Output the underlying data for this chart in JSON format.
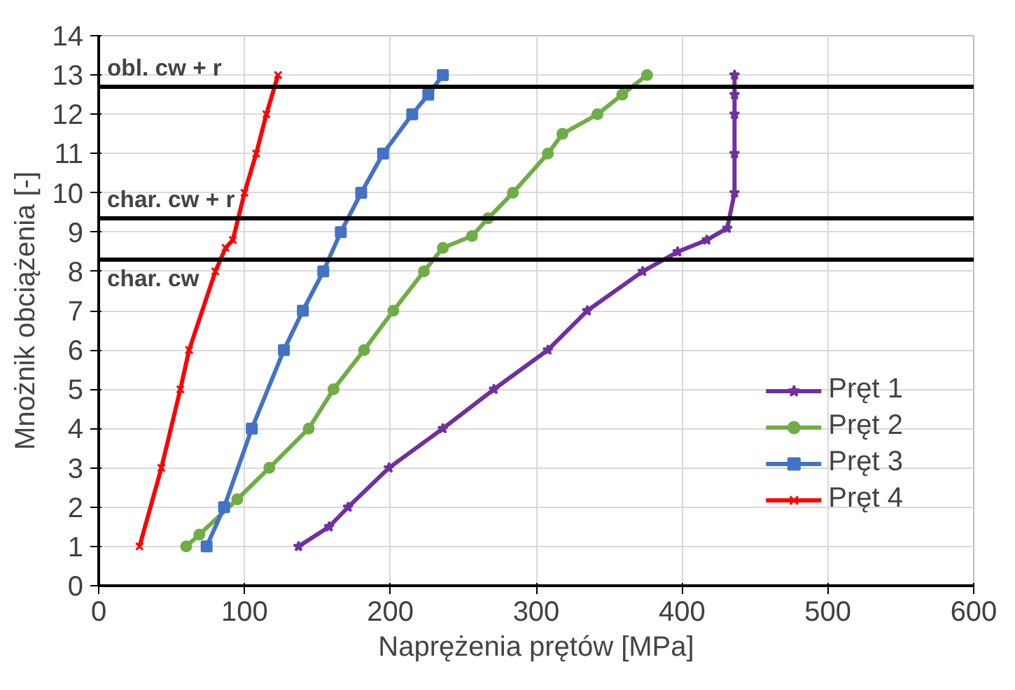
{
  "chart_data": {
    "type": "line",
    "xlabel": "Naprężenia prętów [MPa]",
    "ylabel": "Mnożnik obciążenia [-]",
    "xlim": [
      0,
      600
    ],
    "xticks": [
      0,
      100,
      200,
      300,
      400,
      500,
      600
    ],
    "ylim": [
      0,
      14
    ],
    "yticks": [
      0,
      1,
      2,
      3,
      4,
      5,
      6,
      7,
      8,
      9,
      10,
      11,
      12,
      13,
      14
    ],
    "grid": true,
    "legend": "right",
    "line_style": "solid",
    "series": [
      {
        "name": "Pręt 1",
        "color": "#7030a0",
        "marker": "star",
        "x": [
          137,
          158,
          171,
          199,
          236,
          271,
          308,
          335,
          373,
          397,
          417,
          431,
          436,
          436,
          436,
          436,
          436
        ],
        "values": [
          1,
          1.5,
          2,
          3,
          4,
          5,
          6,
          7,
          8,
          8.5,
          8.8,
          9.1,
          10,
          11,
          12,
          12.5,
          13
        ]
      },
      {
        "name": "Pręt 2",
        "color": "#70ad47",
        "marker": "circle",
        "x": [
          60,
          69,
          95,
          117,
          144,
          161,
          182,
          202,
          223,
          236,
          256,
          267,
          284,
          308,
          318,
          342,
          359,
          376
        ],
        "values": [
          1,
          1.3,
          2.2,
          3,
          4,
          5,
          6,
          7,
          8,
          8.6,
          8.9,
          9.35,
          10,
          11,
          11.5,
          12,
          12.5,
          13
        ]
      },
      {
        "name": "Pręt 3",
        "color": "#4472c4",
        "marker": "square",
        "x": [
          74,
          86,
          105,
          127,
          140,
          154,
          166,
          180,
          195,
          215,
          226,
          236
        ],
        "values": [
          1,
          2,
          4,
          6,
          7,
          8,
          9,
          10,
          11,
          12,
          12.5,
          13
        ]
      },
      {
        "name": "Pręt 4",
        "color": "#ff0000",
        "marker": "cross",
        "x": [
          28,
          43,
          56,
          62,
          80,
          87,
          92,
          100,
          108,
          115,
          123
        ],
        "values": [
          1,
          3,
          5,
          6,
          8,
          8.6,
          8.8,
          10,
          11,
          12,
          13
        ]
      }
    ],
    "ref_lines": [
      {
        "axis": "y",
        "value": 12.7,
        "label": "obl. cw + r",
        "color": "#000000"
      },
      {
        "axis": "y",
        "value": 9.35,
        "label": "char. cw + r",
        "color": "#000000"
      },
      {
        "axis": "y",
        "value": 8.3,
        "label": "char. cw",
        "color": "#000000"
      }
    ]
  }
}
